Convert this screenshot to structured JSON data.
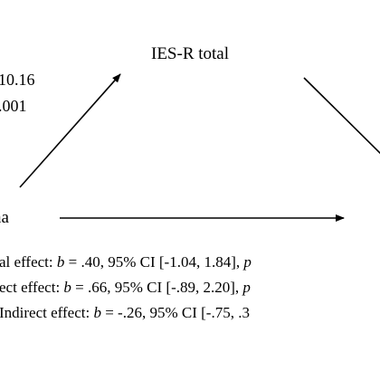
{
  "nodes": {
    "mediator": "IES-R total",
    "predictor_fragment": "na"
  },
  "path_a": {
    "coef_fragment": "10.16",
    "p_fragment": ".001"
  },
  "effects": [
    {
      "prefix": "al effect: ",
      "b_sym": "b",
      "b_text": " = .40, 95% CI [-1.04, 1.84], ",
      "p_sym": "p"
    },
    {
      "prefix": "ect effect: ",
      "b_sym": "b",
      "b_text": " = .66, 95% CI [-.89, 2.20], ",
      "p_sym": "p"
    },
    {
      "prefix": "Indirect effect: ",
      "b_sym": "b",
      "b_text": " = -.26, 95% CI [-.75, .3",
      "p_sym": ""
    }
  ]
}
